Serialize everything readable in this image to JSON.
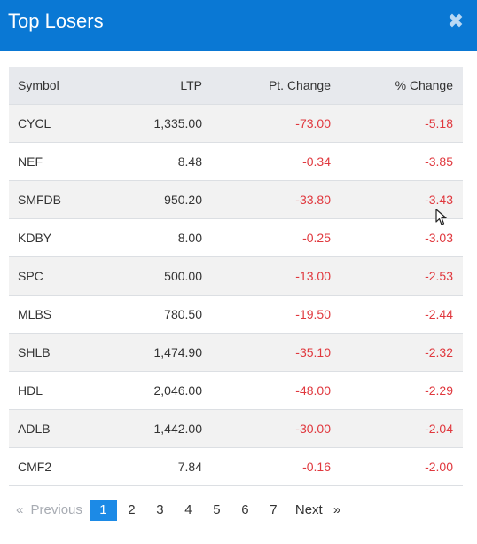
{
  "header": {
    "title": "Top Losers",
    "close_glyph": "✖"
  },
  "table": {
    "columns": [
      "Symbol",
      "LTP",
      "Pt. Change",
      "% Change"
    ],
    "rows": [
      [
        "CYCL",
        "1,335.00",
        "-73.00",
        "-5.18"
      ],
      [
        "NEF",
        "8.48",
        "-0.34",
        "-3.85"
      ],
      [
        "SMFDB",
        "950.20",
        "-33.80",
        "-3.43"
      ],
      [
        "KDBY",
        "8.00",
        "-0.25",
        "-3.03"
      ],
      [
        "SPC",
        "500.00",
        "-13.00",
        "-2.53"
      ],
      [
        "MLBS",
        "780.50",
        "-19.50",
        "-2.44"
      ],
      [
        "SHLB",
        "1,474.90",
        "-35.10",
        "-2.32"
      ],
      [
        "HDL",
        "2,046.00",
        "-48.00",
        "-2.29"
      ],
      [
        "ADLB",
        "1,442.00",
        "-30.00",
        "-2.04"
      ],
      [
        "CMF2",
        "7.84",
        "-0.16",
        "-2.00"
      ]
    ]
  },
  "pagination": {
    "prev_arrow": "«",
    "prev_label": "Previous",
    "pages": [
      "1",
      "2",
      "3",
      "4",
      "5",
      "6",
      "7"
    ],
    "next_label": "Next",
    "next_arrow": "»",
    "active_page": "1"
  },
  "colors": {
    "header_bg": "#0a78d4",
    "negative": "#e0383e",
    "active_page": "#1c8ae6"
  }
}
